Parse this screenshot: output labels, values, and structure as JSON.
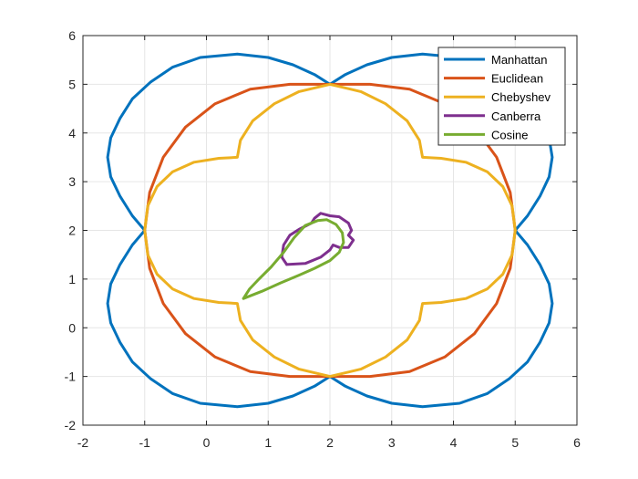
{
  "chart_data": {
    "type": "line",
    "title": "",
    "xlabel": "",
    "ylabel": "",
    "xlim": [
      -2,
      6
    ],
    "ylim": [
      -2,
      6
    ],
    "xticks": [
      "-2",
      "-1",
      "0",
      "1",
      "2",
      "3",
      "4",
      "5",
      "6"
    ],
    "yticks": [
      "-2",
      "-1",
      "0",
      "1",
      "2",
      "3",
      "4",
      "5",
      "6"
    ],
    "grid": true,
    "legend_position": "top-right",
    "series": [
      {
        "name": "Manhattan",
        "color": "#0072BD",
        "x": [
          -1.0,
          -1.2,
          -1.4,
          -1.55,
          -1.6,
          -1.55,
          -1.4,
          -1.2,
          -0.9,
          -0.55,
          -0.1,
          0.5,
          1.0,
          1.4,
          1.75,
          2.0,
          2.25,
          2.6,
          3.0,
          3.5,
          4.1,
          4.55,
          4.9,
          5.2,
          5.4,
          5.55,
          5.6,
          5.55,
          5.4,
          5.2,
          5.0,
          5.2,
          5.4,
          5.55,
          5.6,
          5.55,
          5.4,
          5.2,
          4.9,
          4.55,
          4.1,
          3.5,
          3.0,
          2.6,
          2.25,
          2.0,
          1.75,
          1.4,
          1.0,
          0.5,
          -0.1,
          -0.55,
          -0.9,
          -1.2,
          -1.4,
          -1.55,
          -1.6,
          -1.55,
          -1.4,
          -1.2,
          -1.0
        ],
        "y": [
          2.0,
          2.3,
          2.7,
          3.1,
          3.5,
          3.9,
          4.3,
          4.7,
          5.05,
          5.35,
          5.55,
          5.62,
          5.55,
          5.4,
          5.2,
          5.0,
          5.2,
          5.4,
          5.55,
          5.62,
          5.55,
          5.35,
          5.05,
          4.7,
          4.3,
          3.9,
          3.5,
          3.1,
          2.7,
          2.3,
          2.0,
          1.7,
          1.3,
          0.9,
          0.5,
          0.1,
          -0.3,
          -0.7,
          -1.05,
          -1.35,
          -1.55,
          -1.62,
          -1.55,
          -1.4,
          -1.2,
          -1.0,
          -1.2,
          -1.4,
          -1.55,
          -1.62,
          -1.55,
          -1.35,
          -1.05,
          -0.7,
          -0.3,
          0.1,
          0.5,
          0.9,
          1.3,
          1.7,
          2.0
        ]
      },
      {
        "name": "Euclidean",
        "color": "#D95319",
        "x": [
          -1.0,
          -0.92,
          -0.7,
          -0.34,
          0.14,
          0.71,
          1.35,
          2.0,
          2.65,
          3.29,
          3.86,
          4.34,
          4.7,
          4.92,
          5.0,
          4.92,
          4.7,
          4.34,
          3.86,
          3.29,
          2.65,
          2.0,
          1.35,
          0.71,
          0.14,
          -0.34,
          -0.7,
          -0.92,
          -1.0
        ],
        "y": [
          2.0,
          2.78,
          3.5,
          4.12,
          4.6,
          4.9,
          5.0,
          5.0,
          5.0,
          4.9,
          4.6,
          4.12,
          3.5,
          2.78,
          2.0,
          1.22,
          0.5,
          -0.12,
          -0.6,
          -0.9,
          -1.0,
          -1.0,
          -1.0,
          -0.9,
          -0.6,
          -0.12,
          0.5,
          1.22,
          2.0
        ]
      },
      {
        "name": "Chebyshev",
        "color": "#EDB120",
        "x": [
          -1.0,
          -0.95,
          -0.8,
          -0.55,
          -0.2,
          0.2,
          0.5,
          0.5,
          0.55,
          0.75,
          1.1,
          1.5,
          2.0,
          2.5,
          2.9,
          3.25,
          3.45,
          3.5,
          3.5,
          3.8,
          4.2,
          4.55,
          4.8,
          4.95,
          5.0,
          4.95,
          4.8,
          4.55,
          4.2,
          3.8,
          3.5,
          3.5,
          3.45,
          3.25,
          2.9,
          2.5,
          2.0,
          1.5,
          1.1,
          0.75,
          0.55,
          0.5,
          0.5,
          0.2,
          -0.2,
          -0.55,
          -0.8,
          -0.95,
          -1.0
        ],
        "y": [
          2.0,
          2.5,
          2.9,
          3.2,
          3.4,
          3.48,
          3.5,
          3.5,
          3.85,
          4.25,
          4.6,
          4.85,
          5.0,
          4.85,
          4.6,
          4.25,
          3.85,
          3.5,
          3.5,
          3.48,
          3.4,
          3.2,
          2.9,
          2.5,
          2.0,
          1.5,
          1.1,
          0.8,
          0.6,
          0.52,
          0.5,
          0.5,
          0.15,
          -0.25,
          -0.6,
          -0.85,
          -1.0,
          -0.85,
          -0.6,
          -0.25,
          0.15,
          0.5,
          0.5,
          0.52,
          0.6,
          0.8,
          1.1,
          1.5,
          2.0
        ]
      },
      {
        "name": "Canberra",
        "color": "#7E2F8E",
        "x": [
          1.3,
          1.22,
          1.25,
          1.35,
          1.5,
          1.7,
          1.75,
          1.85,
          2.0,
          2.15,
          2.3,
          2.35,
          2.3,
          2.38,
          2.3,
          2.15,
          2.05,
          2.0,
          1.85,
          1.6,
          1.3
        ],
        "y": [
          1.3,
          1.45,
          1.7,
          1.9,
          2.02,
          2.15,
          2.25,
          2.35,
          2.3,
          2.28,
          2.15,
          2.0,
          1.9,
          1.8,
          1.65,
          1.65,
          1.7,
          1.6,
          1.45,
          1.32,
          1.3
        ]
      },
      {
        "name": "Cosine",
        "color": "#77AC30",
        "x": [
          0.6,
          0.7,
          0.85,
          1.05,
          1.25,
          1.42,
          1.6,
          1.8,
          1.95,
          2.1,
          2.2,
          2.22,
          2.15,
          2.0,
          1.75,
          1.5,
          1.2,
          0.9,
          0.6
        ],
        "y": [
          0.6,
          0.8,
          1.0,
          1.25,
          1.55,
          1.85,
          2.1,
          2.2,
          2.22,
          2.12,
          1.95,
          1.75,
          1.55,
          1.38,
          1.22,
          1.08,
          0.92,
          0.75,
          0.6
        ]
      }
    ]
  }
}
